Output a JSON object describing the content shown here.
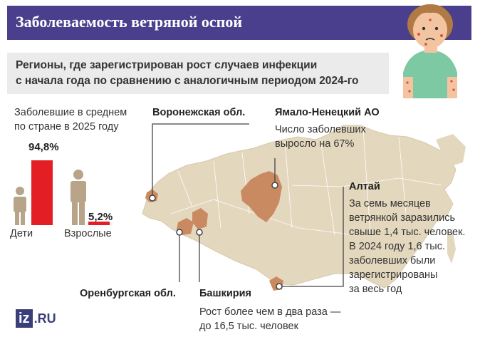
{
  "header": {
    "title": "Заболеваемость ветряной оспой",
    "subtitle_line1": "Регионы, где зарегистрирован рост случаев инфекции",
    "subtitle_line2": "с начала года по сравнению с аналогичным периодом 2024-го"
  },
  "stats": {
    "caption_line1": "Заболевшие в среднем",
    "caption_line2": "по стране в 2025 году",
    "children": {
      "label": "Дети",
      "value_label": "94,8%",
      "value": 94.8
    },
    "adults": {
      "label": "Взрослые",
      "value_label": "5,2%",
      "value": 5.2
    }
  },
  "regions": {
    "voronezh": {
      "name": "Воронежская обл."
    },
    "yamal": {
      "name": "Ямало-Ненецкий АО",
      "line1": "Число заболевших",
      "line2": "выросло на 67%"
    },
    "altai": {
      "name": "Алтай",
      "lines": [
        "За семь месяцев",
        "ветрянкой заразились",
        "свыше 1,4 тыс. человек.",
        "В 2024 году 1,6 тыс.",
        "заболевших были",
        "зарегистрированы",
        "за весь год"
      ]
    },
    "orenburg": {
      "name": "Оренбургская обл."
    },
    "bashkiria": {
      "name": "Башкирия",
      "line1": "Рост более чем в два раза —",
      "line2": "до 16,5 тыс. человек"
    }
  },
  "logo": {
    "mark": "iz",
    "domain": ".RU"
  },
  "colors": {
    "title_bg": "#4a3f8c",
    "bar": "#e31e24",
    "map": "#e3d7bd",
    "highlight": "#c98a62",
    "person": "#b8a488"
  }
}
